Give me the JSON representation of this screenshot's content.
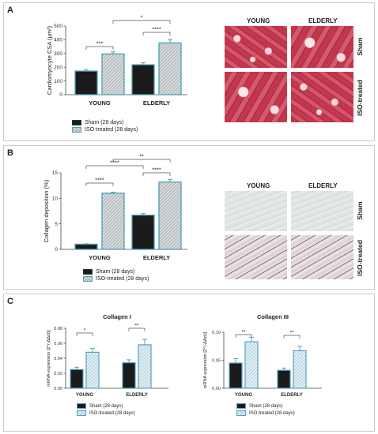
{
  "panels": [
    {
      "id": "A",
      "label": "A"
    },
    {
      "id": "B",
      "label": "B"
    },
    {
      "id": "C",
      "label": "C"
    }
  ],
  "panelA": {
    "micro_titles": {
      "young": "YOUNG",
      "elderly": "ELDERLY"
    },
    "row_labels": {
      "sham": "Sham",
      "iso": "ISO-treated"
    },
    "legend": {
      "sham": "Sham (28 days)",
      "iso": "ISO-treated (28 days)"
    }
  },
  "panelB": {
    "micro_titles": {
      "young": "YOUNG",
      "elderly": "ELDERLY"
    },
    "row_labels": {
      "sham": "Sham",
      "iso": "ISO-treated"
    },
    "legend": {
      "sham": "Sham (28 days)",
      "iso": "ISO-treated (28 days)"
    }
  },
  "panelC": {
    "legend": {
      "sham": "Sham (28 days)",
      "iso": "ISO-treated (28 days)"
    }
  },
  "colors": {
    "sham": "#1b1b1b",
    "iso_border_A": "#4aa0b5",
    "iso_border_C": "#5aa0c0"
  },
  "chart_data": [
    {
      "type": "bar",
      "title": "",
      "ylabel": "Cardiomyocyte CSA (μm²)",
      "categories": [
        "YOUNG",
        "ELDERLY"
      ],
      "series": [
        {
          "name": "Sham (28 days)",
          "values": [
            172,
            218
          ],
          "errors": [
            10,
            14
          ]
        },
        {
          "name": "ISO-treated (28 days)",
          "values": [
            297,
            377
          ],
          "errors": [
            15,
            25
          ]
        }
      ],
      "ylim": [
        0,
        500
      ],
      "yticks": [
        0,
        100,
        200,
        300,
        400,
        500
      ],
      "significance": [
        {
          "groups": [
            "YOUNG Sham",
            "YOUNG ISO"
          ],
          "label": "***"
        },
        {
          "groups": [
            "ELDERLY Sham",
            "ELDERLY ISO"
          ],
          "label": "****"
        },
        {
          "groups": [
            "YOUNG ISO",
            "ELDERLY ISO"
          ],
          "label": "*"
        }
      ]
    },
    {
      "type": "bar",
      "title": "",
      "ylabel": "Collagen deposition (%)",
      "categories": [
        "YOUNG",
        "ELDERLY"
      ],
      "series": [
        {
          "name": "Sham (28 days)",
          "values": [
            1.0,
            6.7
          ],
          "errors": [
            0.1,
            0.3
          ]
        },
        {
          "name": "ISO-treated (28 days)",
          "values": [
            11.0,
            13.2
          ],
          "errors": [
            0.2,
            0.5
          ]
        }
      ],
      "ylim": [
        0,
        15
      ],
      "yticks": [
        0,
        5,
        10,
        15
      ],
      "significance": [
        {
          "groups": [
            "YOUNG Sham",
            "YOUNG ISO"
          ],
          "label": "****"
        },
        {
          "groups": [
            "ELDERLY Sham",
            "ELDERLY ISO"
          ],
          "label": "****"
        },
        {
          "groups": [
            "YOUNG Sham",
            "ELDERLY Sham"
          ],
          "label": "****"
        },
        {
          "groups": [
            "YOUNG ISO",
            "ELDERLY ISO"
          ],
          "label": "**"
        }
      ]
    },
    {
      "type": "bar",
      "title": "Collagen I",
      "ylabel": "mRNA expression [2^(-ΔΔct)]",
      "categories": [
        "YOUNG",
        "ELDERLY"
      ],
      "series": [
        {
          "name": "Sham (28 days)",
          "values": [
            0.025,
            0.034
          ],
          "errors": [
            0.003,
            0.004
          ]
        },
        {
          "name": "ISO-treated (28 days)",
          "values": [
            0.048,
            0.058
          ],
          "errors": [
            0.005,
            0.007
          ]
        }
      ],
      "ylim": [
        0,
        0.08
      ],
      "yticks": [
        0.0,
        0.02,
        0.04,
        0.06,
        0.08
      ],
      "significance": [
        {
          "groups": [
            "YOUNG Sham",
            "YOUNG ISO"
          ],
          "label": "*"
        },
        {
          "groups": [
            "ELDERLY Sham",
            "ELDERLY ISO"
          ],
          "label": "**"
        }
      ]
    },
    {
      "type": "bar",
      "title": "Collagen III",
      "ylabel": "mRNA expression [2^(-ΔΔct)]",
      "categories": [
        "YOUNG",
        "ELDERLY"
      ],
      "series": [
        {
          "name": "Sham (28 days)",
          "values": [
            0.045,
            0.032
          ],
          "errors": [
            0.008,
            0.004
          ]
        },
        {
          "name": "ISO-treated (28 days)",
          "values": [
            0.083,
            0.067
          ],
          "errors": [
            0.008,
            0.008
          ]
        }
      ],
      "ylim": [
        0,
        0.1
      ],
      "yticks": [
        0.0,
        0.05,
        0.1
      ],
      "significance": [
        {
          "groups": [
            "YOUNG Sham",
            "YOUNG ISO"
          ],
          "label": "**"
        },
        {
          "groups": [
            "ELDERLY Sham",
            "ELDERLY ISO"
          ],
          "label": "**"
        }
      ]
    }
  ]
}
